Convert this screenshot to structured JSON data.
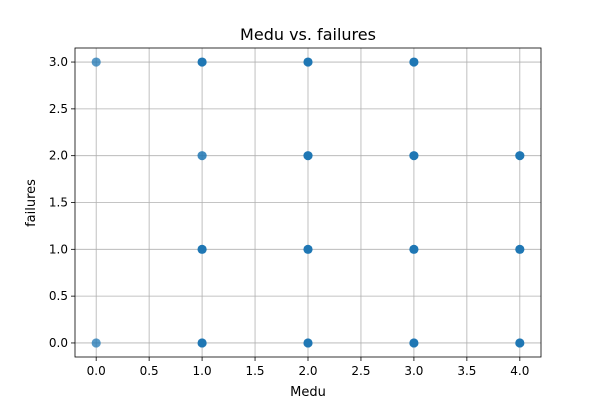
{
  "chart_data": {
    "type": "scatter",
    "title": "Medu vs. failures",
    "xlabel": "Medu",
    "ylabel": "failures",
    "xlim": [
      -0.2,
      4.2
    ],
    "ylim": [
      -0.15,
      3.15
    ],
    "x_ticks": [
      "0.0",
      "0.5",
      "1.0",
      "1.5",
      "2.0",
      "2.5",
      "3.0",
      "3.5",
      "4.0"
    ],
    "y_ticks": [
      "0.0",
      "0.5",
      "1.0",
      "1.5",
      "2.0",
      "2.5",
      "3.0"
    ],
    "grid": true,
    "legend": "none",
    "marker_color": "#1f77b4",
    "points": [
      {
        "x": 0,
        "y": 3,
        "alpha": 0.75
      },
      {
        "x": 0,
        "y": 0,
        "alpha": 0.75
      },
      {
        "x": 1,
        "y": 3,
        "alpha": 1.0
      },
      {
        "x": 1,
        "y": 2,
        "alpha": 0.85
      },
      {
        "x": 1,
        "y": 1,
        "alpha": 1.0
      },
      {
        "x": 1,
        "y": 0,
        "alpha": 1.0
      },
      {
        "x": 2,
        "y": 3,
        "alpha": 1.0
      },
      {
        "x": 2,
        "y": 2,
        "alpha": 1.0
      },
      {
        "x": 2,
        "y": 1,
        "alpha": 1.0
      },
      {
        "x": 2,
        "y": 0,
        "alpha": 1.0
      },
      {
        "x": 3,
        "y": 3,
        "alpha": 1.0
      },
      {
        "x": 3,
        "y": 2,
        "alpha": 1.0
      },
      {
        "x": 3,
        "y": 1,
        "alpha": 1.0
      },
      {
        "x": 3,
        "y": 0,
        "alpha": 1.0
      },
      {
        "x": 4,
        "y": 2,
        "alpha": 1.0
      },
      {
        "x": 4,
        "y": 1,
        "alpha": 1.0
      },
      {
        "x": 4,
        "y": 0,
        "alpha": 1.0
      }
    ]
  }
}
